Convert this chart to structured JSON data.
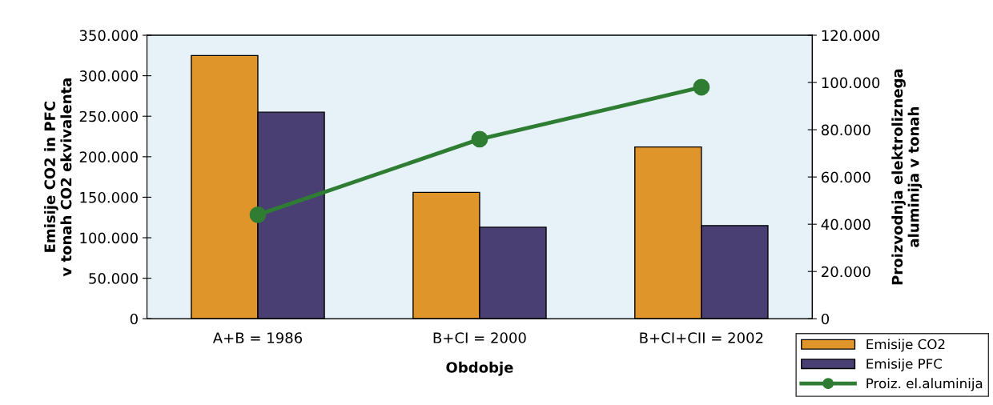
{
  "chart_data": {
    "type": "bar",
    "xlabel": "Obdobje",
    "ylabel": "Emisije CO2 in PFC\nv tonah CO2 ekvivalenta",
    "y2label": "Proizvodnja elektroliznega\naluminija v tonah",
    "categories": [
      "A+B = 1986",
      "B+CI = 2000",
      "B+CI+CII = 2002"
    ],
    "series": [
      {
        "name": "Emisije CO2",
        "color": "#e0952a",
        "values": [
          325000,
          156000,
          212000
        ]
      },
      {
        "name": "Emisije PFC",
        "color": "#4a3f73",
        "values": [
          255000,
          113000,
          115000
        ]
      },
      {
        "name": "Proiz. el.aluminija",
        "type": "line",
        "axis": "y2",
        "color": "#2e7d32",
        "marker": "circle",
        "values": [
          44000,
          76000,
          98000
        ]
      }
    ],
    "ylim": [
      0,
      350000
    ],
    "yticks": [
      {
        "value": 0,
        "label": "0"
      },
      {
        "value": 50000,
        "label": "50.000"
      },
      {
        "value": 100000,
        "label": "100.000"
      },
      {
        "value": 150000,
        "label": "150.000"
      },
      {
        "value": 200000,
        "label": "200.000"
      },
      {
        "value": 250000,
        "label": "250.000"
      },
      {
        "value": 300000,
        "label": "300.000"
      },
      {
        "value": 350000,
        "label": "350.000"
      }
    ],
    "y2lim": [
      0,
      120000
    ],
    "y2ticks": [
      {
        "value": 0,
        "label": "0"
      },
      {
        "value": 20000,
        "label": "20.000"
      },
      {
        "value": 40000,
        "label": "40.000"
      },
      {
        "value": 60000,
        "label": "60.000"
      },
      {
        "value": 80000,
        "label": "80.000"
      },
      {
        "value": 100000,
        "label": "100.000"
      },
      {
        "value": 120000,
        "label": "120.000"
      }
    ],
    "grid": false,
    "legend": "bottom right"
  }
}
